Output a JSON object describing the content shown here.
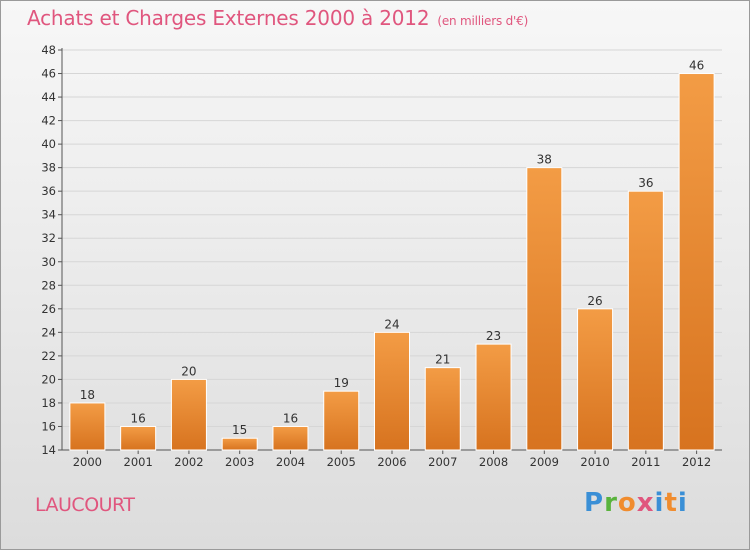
{
  "header": {
    "title": "Achats et Charges Externes 2000 à 2012",
    "subtitle": "(en milliers d'€)"
  },
  "footer": {
    "commune": "LAUCOURT",
    "logo_parts": [
      "P",
      "r",
      "o",
      "x",
      "i",
      "t",
      "i"
    ]
  },
  "colors": {
    "bar": "#f39c45",
    "bar_dark": "#d7731f",
    "title": "#e0567e",
    "grid": "#d6d6d6"
  },
  "chart_data": {
    "type": "bar",
    "title": "Achats et Charges Externes 2000 à 2012",
    "subtitle": "(en milliers d'€)",
    "categories": [
      "2000",
      "2001",
      "2002",
      "2003",
      "2004",
      "2005",
      "2006",
      "2007",
      "2008",
      "2009",
      "2010",
      "2011",
      "2012"
    ],
    "values": [
      18,
      16,
      20,
      15,
      16,
      19,
      24,
      21,
      23,
      38,
      26,
      36,
      46
    ],
    "ylim": [
      14,
      48
    ],
    "yticks": [
      14,
      16,
      18,
      20,
      22,
      24,
      26,
      28,
      30,
      32,
      34,
      36,
      38,
      40,
      42,
      44,
      46,
      48
    ],
    "grid": true,
    "data_labels": true
  }
}
